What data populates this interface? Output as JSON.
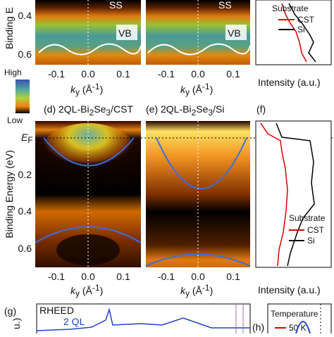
{
  "top": {
    "y_axis_label": "Binding E",
    "yticks": [
      "0.4",
      "0.6"
    ],
    "xticks": [
      "-0.1",
      "0.0",
      "0.1"
    ],
    "x_axis_label": [
      "k",
      "y",
      " (Å",
      "-1",
      ")"
    ],
    "labels": [
      "SS",
      "VB"
    ],
    "intensity_label": "Intensity (a.u.)",
    "legend": {
      "title": "Substrate",
      "items": [
        "CST",
        "Si"
      ]
    }
  },
  "colorbar": {
    "high": "High",
    "low": "Low"
  },
  "middle": {
    "panel_d": [
      "(d) 2QL-Bi",
      "2",
      "Se",
      "3",
      "/CST"
    ],
    "panel_e": [
      "(e) 2QL-Bi",
      "2",
      "Se",
      "3",
      "/Si"
    ],
    "panel_f": "(f)",
    "y_axis_label": "Binding Energy (eV)",
    "yticks": [
      [
        "E",
        "F"
      ],
      "0.2",
      "0.4",
      "0.6"
    ],
    "xticks": [
      "-0.1",
      "0.0",
      "0.1"
    ],
    "x_axis_label": [
      "k",
      "y",
      " (Å",
      "-1",
      ")"
    ],
    "intensity_label": "Intensity (a.u.)",
    "legend": {
      "title": "Substrate",
      "items": [
        "CST",
        "Si"
      ]
    }
  },
  "bottom": {
    "panel_g": "(g)",
    "rheed": "RHEED",
    "ql": "2 QL",
    "axis_fragment": "u.)",
    "panel_h": "(h)",
    "temperature": "Temperature",
    "temp_item": "50 K"
  }
}
